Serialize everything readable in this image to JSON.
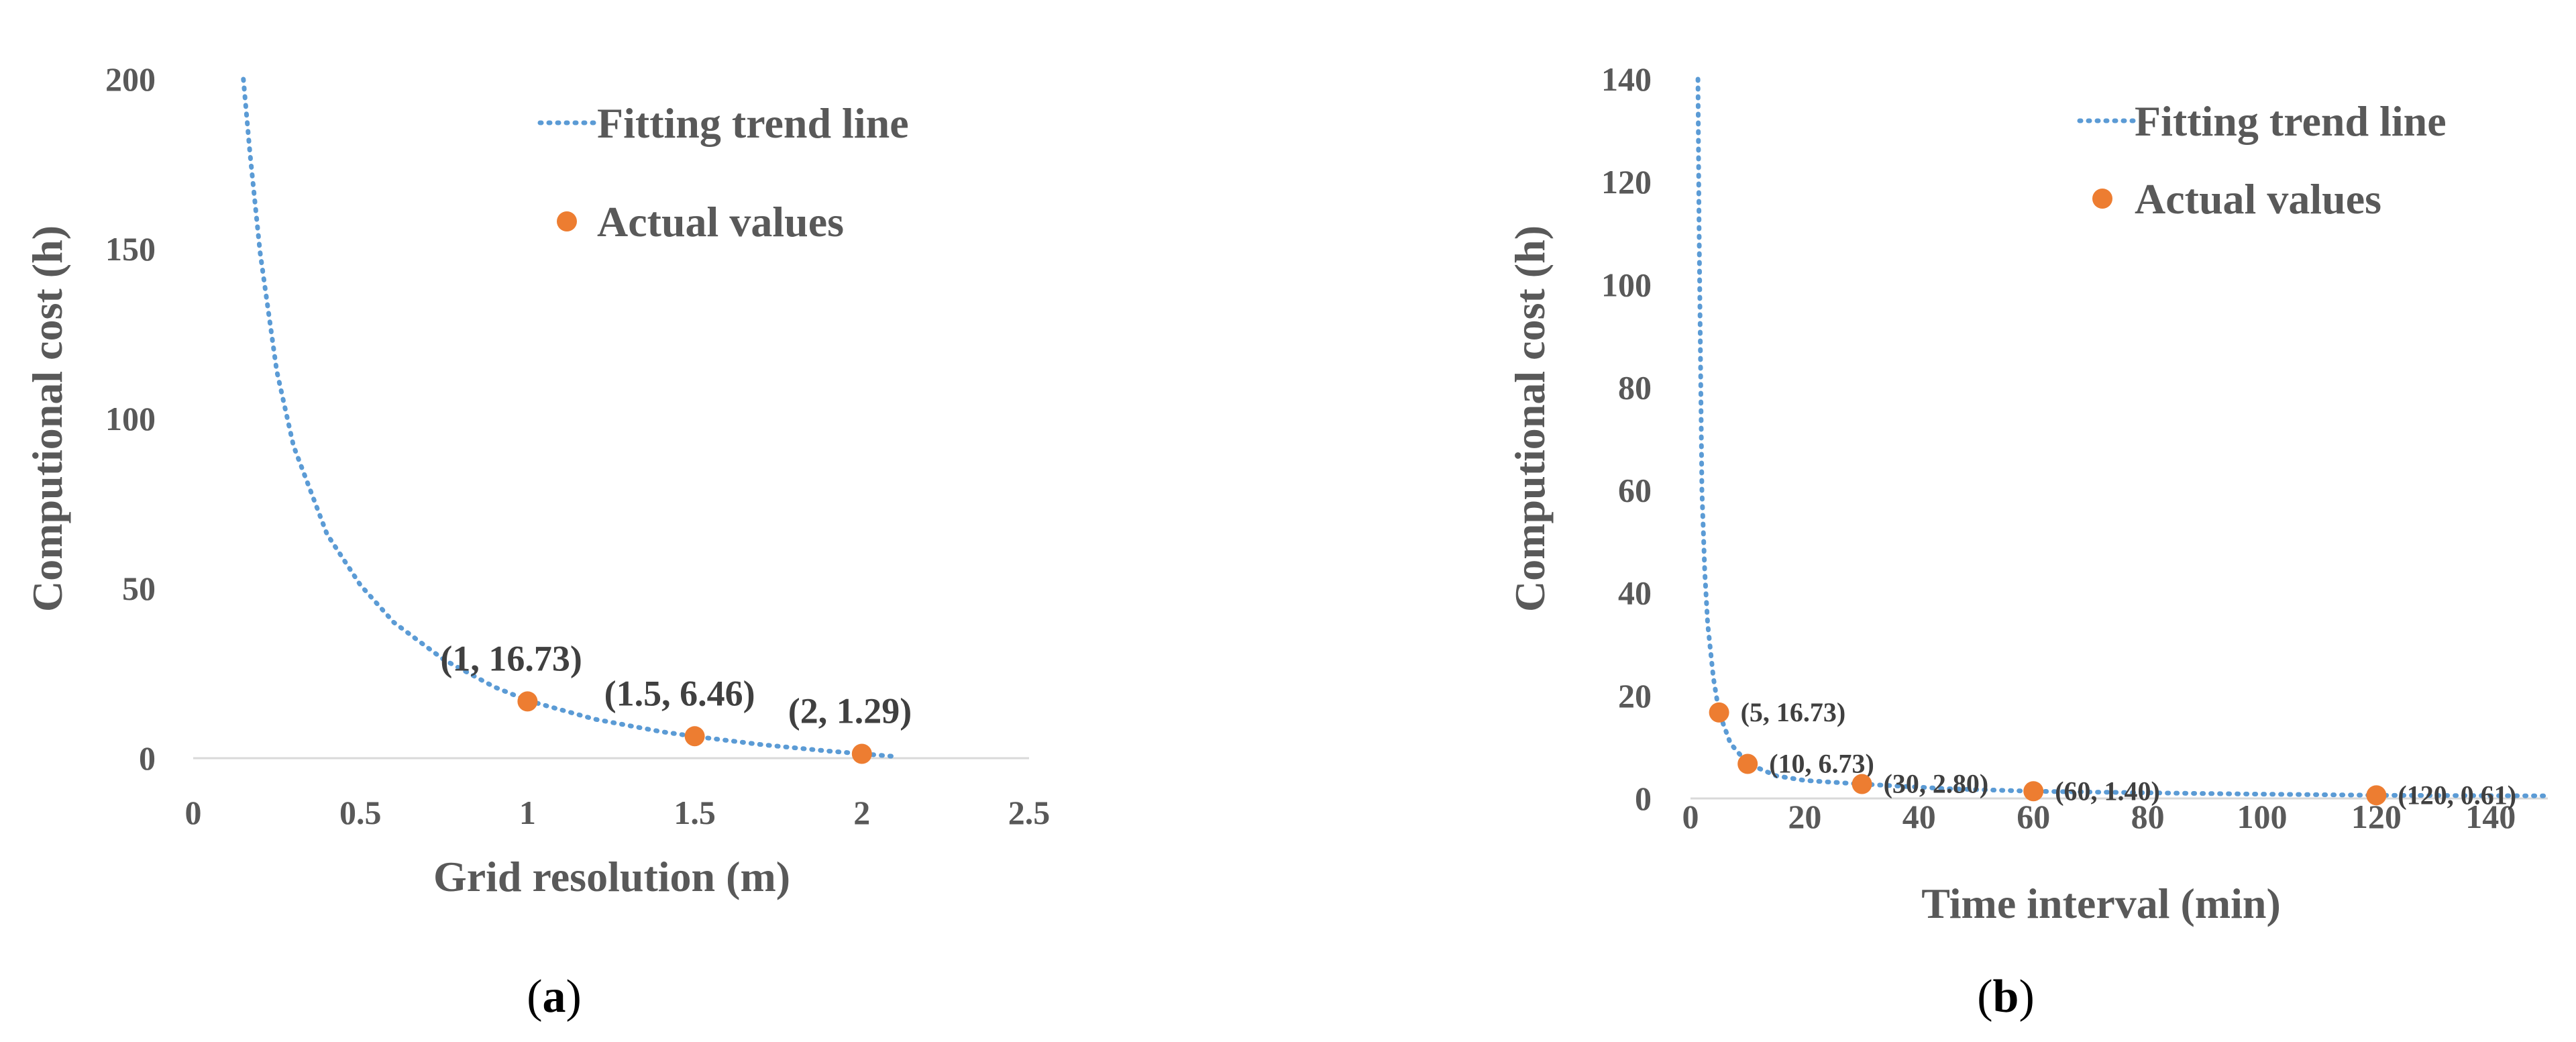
{
  "chart_data": [
    {
      "type": "scatter",
      "panel_label": "(a)",
      "panel_label_parts": {
        "open": "(",
        "letter": "a",
        "close": ")"
      },
      "xlabel": "Grid resolution (m)",
      "ylabel": "Computional cost (h)",
      "xlim": [
        0,
        2.5
      ],
      "ylim": [
        0,
        200
      ],
      "xticks": [
        0,
        0.5,
        1,
        1.5,
        2,
        2.5
      ],
      "xtick_labels": [
        "0",
        "0.5",
        "1",
        "1.5",
        "2",
        "2.5"
      ],
      "yticks": [
        0,
        50,
        100,
        150,
        200
      ],
      "ytick_labels": [
        "0",
        "50",
        "100",
        "150",
        "200"
      ],
      "grid": false,
      "legend_position": "top-right",
      "legend": [
        "Fitting trend line",
        "Actual values"
      ],
      "series": [
        {
          "name": "Fitting trend line",
          "kind": "dotted-line",
          "x": [
            0.15,
            0.17,
            0.2,
            0.25,
            0.3,
            0.4,
            0.5,
            0.6,
            0.75,
            0.9,
            1.0,
            1.2,
            1.4,
            1.5,
            1.7,
            1.9,
            2.0,
            2.1
          ],
          "y": [
            200,
            178,
            149,
            114,
            92,
            66,
            51,
            40,
            29,
            21,
            17,
            11.5,
            7.8,
            6.4,
            4.0,
            2.1,
            1.3,
            0.5
          ]
        },
        {
          "name": "Actual values",
          "kind": "points",
          "x": [
            1,
            1.5,
            2
          ],
          "y": [
            16.73,
            6.46,
            1.29
          ],
          "labels": [
            "(1, 16.73)",
            "(1.5, 6.46)",
            "(2, 1.29)"
          ]
        }
      ],
      "colors": {
        "trend": "#5B9BD5",
        "points": "#ED7D31"
      }
    },
    {
      "type": "scatter",
      "panel_label": "(b)",
      "panel_label_parts": {
        "open": "(",
        "letter": "b",
        "close": ")"
      },
      "xlabel": "Time interval (min)",
      "ylabel": "Computional cost (h)",
      "xlim": [
        0,
        150
      ],
      "ylim": [
        0,
        140
      ],
      "xticks": [
        0,
        20,
        40,
        60,
        80,
        100,
        120,
        140
      ],
      "xtick_labels": [
        "0",
        "20",
        "40",
        "60",
        "80",
        "100",
        "120",
        "140"
      ],
      "yticks": [
        0,
        20,
        40,
        60,
        80,
        100,
        120,
        140
      ],
      "ytick_labels": [
        "0",
        "20",
        "40",
        "60",
        "80",
        "100",
        "120",
        "140"
      ],
      "grid": false,
      "legend_position": "top-right",
      "legend": [
        "Fitting trend line",
        "Actual values"
      ],
      "series": [
        {
          "name": "Fitting trend line",
          "kind": "dotted-line",
          "x": [
            1.3,
            1.5,
            2,
            2.5,
            3,
            4,
            5,
            7,
            10,
            15,
            20,
            30,
            45,
            60,
            90,
            120,
            150
          ],
          "y": [
            140,
            111,
            60,
            44,
            34,
            23.5,
            16.7,
            10.7,
            6.8,
            4.4,
            3.5,
            2.8,
            1.9,
            1.4,
            0.95,
            0.61,
            0.5
          ]
        },
        {
          "name": "Actual values",
          "kind": "points",
          "x": [
            5,
            10,
            30,
            60,
            120
          ],
          "y": [
            16.73,
            6.73,
            2.8,
            1.4,
            0.61
          ],
          "labels": [
            "(5, 16.73)",
            "(10, 6.73)",
            "(30, 2.80)",
            "(60, 1.40)",
            "(120, 0.61)"
          ]
        }
      ],
      "colors": {
        "trend": "#5B9BD5",
        "points": "#ED7D31"
      }
    }
  ]
}
